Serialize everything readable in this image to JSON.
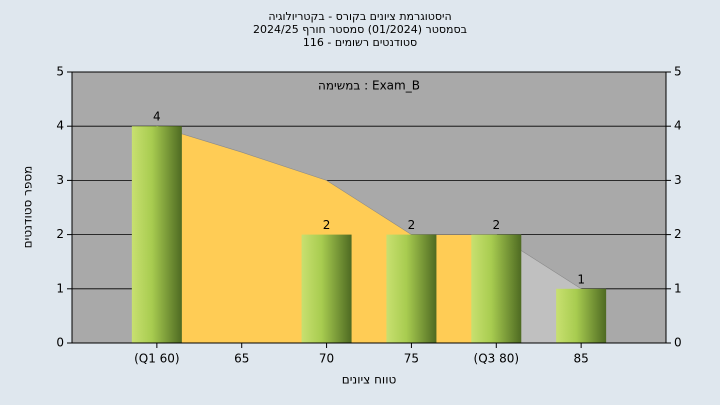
{
  "chart_data": {
    "type": "bar",
    "title": "היסטוגרמת ציונים בקורס - בקטריולוגיה",
    "subtitles": [
      "בסמסטר  (01/2024)  סמסטר חורף 2024/25",
      "סטודנטים רשומים - 116"
    ],
    "annotation": "במשימה : Exam_B",
    "xlabel": "טווח ציונים",
    "ylabel": "מספר סטודנטים",
    "categories": [
      "(Q1 60)",
      "65",
      "70",
      "75",
      "(Q3 80)",
      "85"
    ],
    "series": [
      {
        "kind": "area",
        "color": "#ffcc55",
        "values": [
          4,
          3.52,
          3,
          2,
          2,
          null
        ]
      },
      {
        "kind": "area",
        "color": "#c0c0c0",
        "values": [
          null,
          null,
          null,
          null,
          2,
          1
        ]
      },
      {
        "kind": "bar",
        "color": "#8fbc3a",
        "values": [
          4,
          0,
          2,
          2,
          2,
          1
        ]
      }
    ],
    "ylim": [
      0,
      5
    ],
    "yticks": [
      0,
      1,
      2,
      3,
      4,
      5
    ],
    "grid": true,
    "right_axis": true
  }
}
